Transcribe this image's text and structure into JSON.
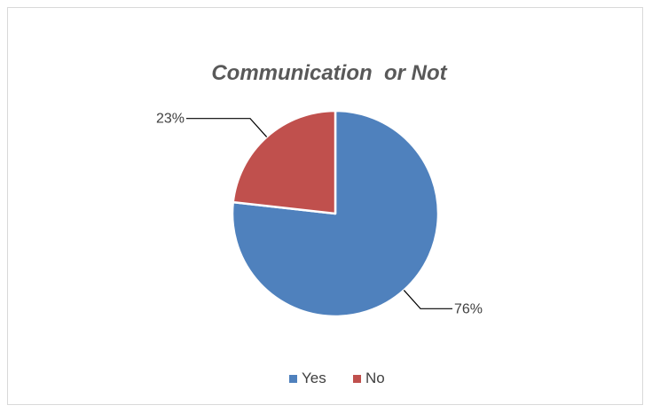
{
  "chart_data": {
    "type": "pie",
    "title": "Communication  or Not",
    "categories": [
      "Yes",
      "No"
    ],
    "values": [
      76,
      23
    ],
    "data_labels": [
      "76%",
      "23%"
    ],
    "colors": [
      "#4f81bd",
      "#c0504d"
    ],
    "legend_position": "bottom",
    "start_angle": "top, clockwise"
  }
}
